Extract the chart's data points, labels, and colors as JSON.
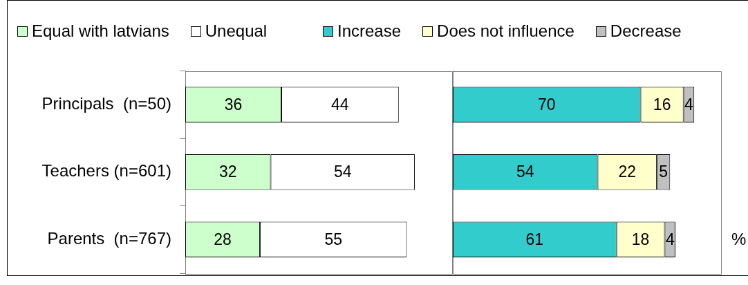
{
  "chart_data": [
    {
      "type": "bar",
      "orientation": "horizontal",
      "stacked": true,
      "categories": [
        "Principals  (n=50)",
        "Teachers (n=601)",
        "Parents  (n=767)"
      ],
      "series": [
        {
          "name": "Equal with latvians",
          "color": "#ccffcc",
          "values": [
            36,
            32,
            28
          ]
        },
        {
          "name": "Unequal",
          "color": "#ffffff",
          "values": [
            44,
            54,
            55
          ]
        }
      ],
      "xlim": [
        0,
        100
      ],
      "data_labels": true,
      "legend": "top left",
      "tick_labels": "y",
      "grid": false
    },
    {
      "type": "bar",
      "orientation": "horizontal",
      "stacked": true,
      "categories": [
        null,
        null,
        null
      ],
      "series": [
        {
          "name": "Increase",
          "color": "#33cccc",
          "values": [
            70,
            54,
            61
          ]
        },
        {
          "name": "Does not influence",
          "color": "#ffffcc",
          "values": [
            16,
            22,
            18
          ]
        },
        {
          "name": "Decrease",
          "color": "#c0c0c0",
          "values": [
            4,
            5,
            4
          ]
        }
      ],
      "xlim": [
        0,
        100
      ],
      "data_labels": true,
      "legend": "top left",
      "tick_labels": false,
      "grid": false,
      "annotations": [
        "%"
      ]
    }
  ]
}
